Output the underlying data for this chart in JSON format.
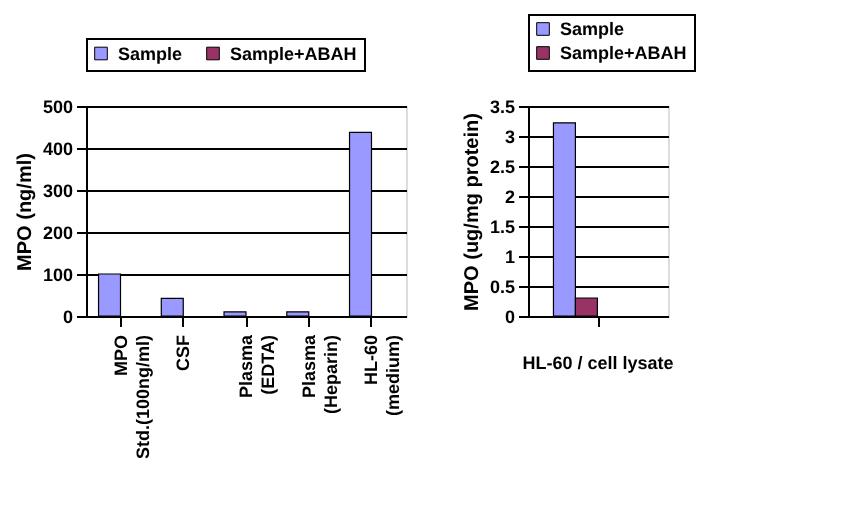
{
  "chart_data": [
    {
      "type": "bar",
      "categories": [
        "MPO Std.(100ng/ml)",
        "CSF",
        "Plasma (EDTA)",
        "Plasma (Heparin)",
        "HL-60 (medium)"
      ],
      "ylabel": "MPO (ng/ml)",
      "ylim": [
        0,
        500
      ],
      "yticks": [
        0,
        100,
        200,
        300,
        400,
        500
      ],
      "grid": "y",
      "legend": "top",
      "series": [
        {
          "name": "Sample",
          "color": "#9999ff",
          "values": [
            100,
            42,
            10,
            10,
            437
          ]
        },
        {
          "name": "Sample+ABAH",
          "color": "#993366",
          "values": [
            null,
            null,
            null,
            null,
            null
          ]
        }
      ]
    },
    {
      "type": "bar",
      "categories": [
        "HL-60 / cell lysate"
      ],
      "ylabel": "MPO (ug/mg protein)",
      "ylim": [
        0,
        3.5
      ],
      "yticks": [
        0,
        0.5,
        1,
        1.5,
        2,
        2.5,
        3,
        3.5
      ],
      "grid": "y",
      "legend": "top",
      "series": [
        {
          "name": "Sample",
          "color": "#9999ff",
          "values": [
            3.22
          ]
        },
        {
          "name": "Sample+ABAH",
          "color": "#993366",
          "values": [
            0.3
          ]
        }
      ]
    }
  ]
}
